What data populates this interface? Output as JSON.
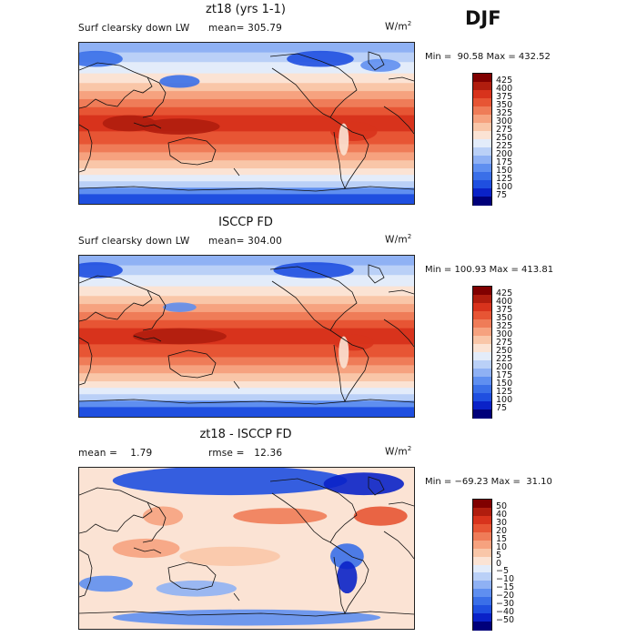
{
  "season_label": "DJF",
  "units": "W/m",
  "units_sup": "2",
  "panels": [
    {
      "title": "zt18 (yrs 1-1)",
      "field_label": "Surf clearsky down LW",
      "stat_text": "mean= 305.79",
      "minmax_text": "Min =  90.58 Max = 432.52",
      "kind": "abs"
    },
    {
      "title": "ISCCP FD",
      "field_label": "Surf clearsky down LW",
      "stat_text": "mean= 304.00",
      "minmax_text": "Min = 100.93 Max = 413.81",
      "kind": "abs"
    },
    {
      "title": "zt18 - ISCCP FD",
      "field_label": "mean =    1.79",
      "stat_text": "rmse =   12.36",
      "minmax_text": "Min = −69.23 Max =  31.10",
      "kind": "diff"
    }
  ],
  "chart_data": [
    {
      "type": "heatmap",
      "title": "zt18 (yrs 1-1)",
      "subtitle": "Surf clearsky down LW",
      "units": "W/m2",
      "mean": 305.79,
      "min": 90.58,
      "max": 432.52,
      "contour_levels": [
        75,
        100,
        125,
        150,
        175,
        200,
        225,
        250,
        275,
        300,
        325,
        350,
        375,
        400,
        425
      ],
      "colors": [
        "#00007a",
        "#0a22c8",
        "#1f4fe0",
        "#3a6fe8",
        "#5f8ff0",
        "#8fb1f4",
        "#bad0f7",
        "#e3ecfa",
        "#fbe3d4",
        "#f9c6a8",
        "#f6a27f",
        "#ef7c58",
        "#e75534",
        "#d8331c",
        "#b01d0e",
        "#800000"
      ]
    },
    {
      "type": "heatmap",
      "title": "ISCCP FD",
      "subtitle": "Surf clearsky down LW",
      "units": "W/m2",
      "mean": 304.0,
      "min": 100.93,
      "max": 413.81,
      "contour_levels": [
        75,
        100,
        125,
        150,
        175,
        200,
        225,
        250,
        275,
        300,
        325,
        350,
        375,
        400,
        425
      ],
      "colors": [
        "#00007a",
        "#0a22c8",
        "#1f4fe0",
        "#3a6fe8",
        "#5f8ff0",
        "#8fb1f4",
        "#bad0f7",
        "#e3ecfa",
        "#fbe3d4",
        "#f9c6a8",
        "#f6a27f",
        "#ef7c58",
        "#e75534",
        "#d8331c",
        "#b01d0e",
        "#800000"
      ]
    },
    {
      "type": "heatmap",
      "title": "zt18 - ISCCP FD",
      "units": "W/m2",
      "mean": 1.79,
      "rmse": 12.36,
      "min": -69.23,
      "max": 31.1,
      "contour_levels": [
        -50,
        -40,
        -30,
        -20,
        -15,
        -10,
        -5,
        0,
        5,
        10,
        15,
        20,
        30,
        40,
        50
      ],
      "colors": [
        "#00007a",
        "#0a22c8",
        "#1f4fe0",
        "#3a6fe8",
        "#5f8ff0",
        "#8fb1f4",
        "#bad0f7",
        "#e3ecfa",
        "#fbe3d4",
        "#f9c6a8",
        "#f6a27f",
        "#ef7c58",
        "#e75534",
        "#d8331c",
        "#b01d0e",
        "#800000"
      ]
    }
  ],
  "colorbar_labels": [
    [
      "425",
      "400",
      "375",
      "350",
      "325",
      "300",
      "275",
      "250",
      "225",
      "200",
      "175",
      "150",
      "125",
      "100",
      "75"
    ],
    [
      "425",
      "400",
      "375",
      "350",
      "325",
      "300",
      "275",
      "250",
      "225",
      "200",
      "175",
      "150",
      "125",
      "100",
      "75"
    ],
    [
      "50",
      "40",
      "30",
      "20",
      "15",
      "10",
      "5",
      "0",
      "−5",
      "−10",
      "−15",
      "−20",
      "−30",
      "−40",
      "−50"
    ]
  ]
}
